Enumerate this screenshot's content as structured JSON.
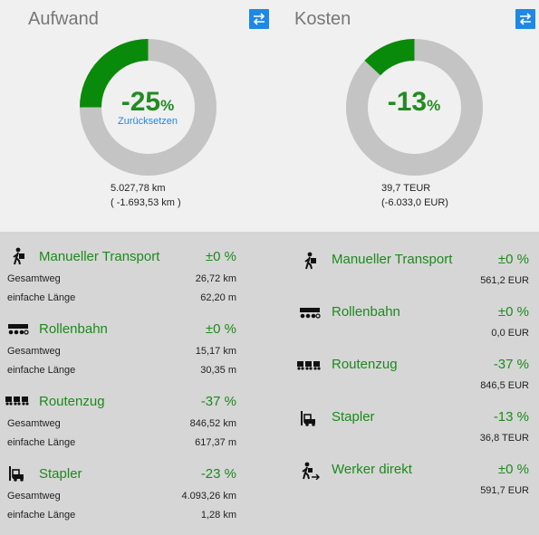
{
  "aufwand": {
    "title": "Aufwand",
    "percent": "-25",
    "percent_unit": "%",
    "reset_label": "Zurücksetzen",
    "total": "5.027,78 km",
    "delta": "( -1.693,53 km )",
    "fill_fraction": 0.25
  },
  "kosten": {
    "title": "Kosten",
    "percent": "-13",
    "percent_unit": "%",
    "total": "39,7 TEUR",
    "delta": "(-6.033,0 EUR)",
    "fill_fraction": 0.13
  },
  "colors": {
    "green": "#0a8a0a",
    "grey": "#c4c4c4",
    "accent": "#1e88e5",
    "text_green": "#1c8a1c"
  },
  "left_list": [
    {
      "icon": "manual-transport-icon",
      "name": "Manueller Transport",
      "pct": "±0 %",
      "rows": [
        {
          "label": "Gesamtweg",
          "value": "26,72 km"
        },
        {
          "label": "einfache Länge",
          "value": "62,20 m"
        }
      ]
    },
    {
      "icon": "roller-conveyor-icon",
      "name": "Rollenbahn",
      "pct": "±0 %",
      "rows": [
        {
          "label": "Gesamtweg",
          "value": "15,17 km"
        },
        {
          "label": "einfache Länge",
          "value": "30,35 m"
        }
      ]
    },
    {
      "icon": "route-train-icon",
      "name": "Routenzug",
      "pct": "-37 %",
      "rows": [
        {
          "label": "Gesamtweg",
          "value": "846,52 km"
        },
        {
          "label": "einfache Länge",
          "value": "617,37 m"
        }
      ]
    },
    {
      "icon": "forklift-icon",
      "name": "Stapler",
      "pct": "-23 %",
      "rows": [
        {
          "label": "Gesamtweg",
          "value": "4.093,26 km"
        },
        {
          "label": "einfache Länge",
          "value": "1,28 km"
        }
      ]
    }
  ],
  "right_list": [
    {
      "icon": "manual-transport-icon",
      "name": "Manueller Transport",
      "pct": "±0 %",
      "value": "561,2 EUR"
    },
    {
      "icon": "roller-conveyor-icon",
      "name": "Rollenbahn",
      "pct": "±0 %",
      "value": "0,0 EUR"
    },
    {
      "icon": "route-train-icon",
      "name": "Routenzug",
      "pct": "-37 %",
      "value": "846,5 EUR"
    },
    {
      "icon": "forklift-icon",
      "name": "Stapler",
      "pct": "-13 %",
      "value": "36,8 TEUR"
    },
    {
      "icon": "worker-direct-icon",
      "name": "Werker direkt",
      "pct": "±0 %",
      "value": "591,7 EUR"
    }
  ]
}
